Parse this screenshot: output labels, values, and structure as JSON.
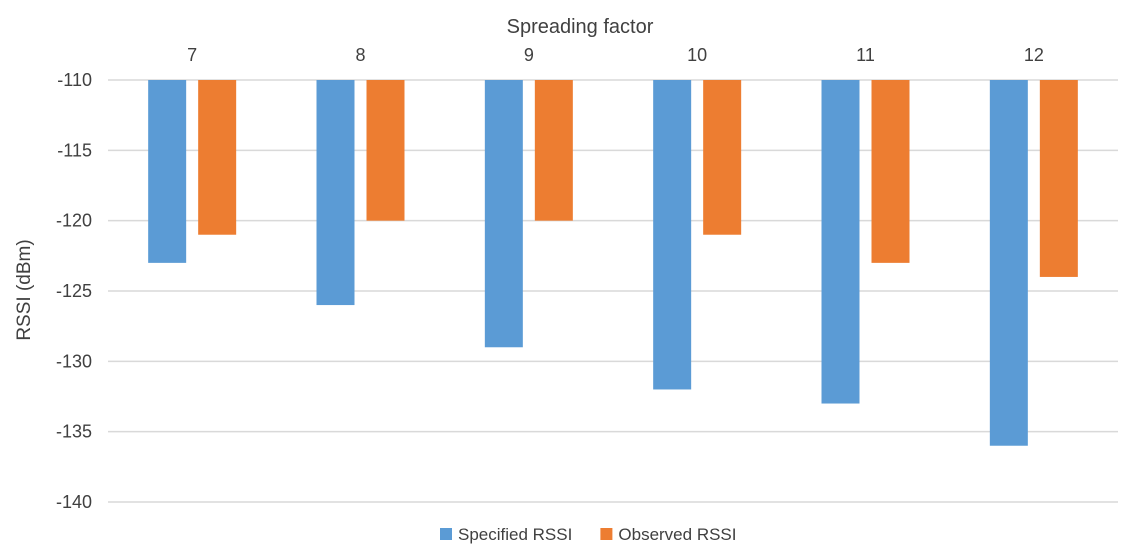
{
  "chart_data": {
    "type": "bar",
    "xlabel": "Spreading factor",
    "ylabel": "RSSI (dBm)",
    "categories": [
      "7",
      "8",
      "9",
      "10",
      "11",
      "12"
    ],
    "series": [
      {
        "name": "Specified RSSI",
        "color": "#5b9bd5",
        "values": [
          -123,
          -126,
          -129,
          -132,
          -133,
          -136
        ]
      },
      {
        "name": "Observed RSSI",
        "color": "#ed7d31",
        "values": [
          -121,
          -120,
          -120,
          -121,
          -123,
          -124
        ]
      }
    ],
    "ylim": [
      -140,
      -110
    ],
    "yticks": [
      -110,
      -115,
      -120,
      -125,
      -130,
      -135,
      -140
    ],
    "grid": true,
    "x_axis_position": "top",
    "legend_position": "bottom"
  }
}
